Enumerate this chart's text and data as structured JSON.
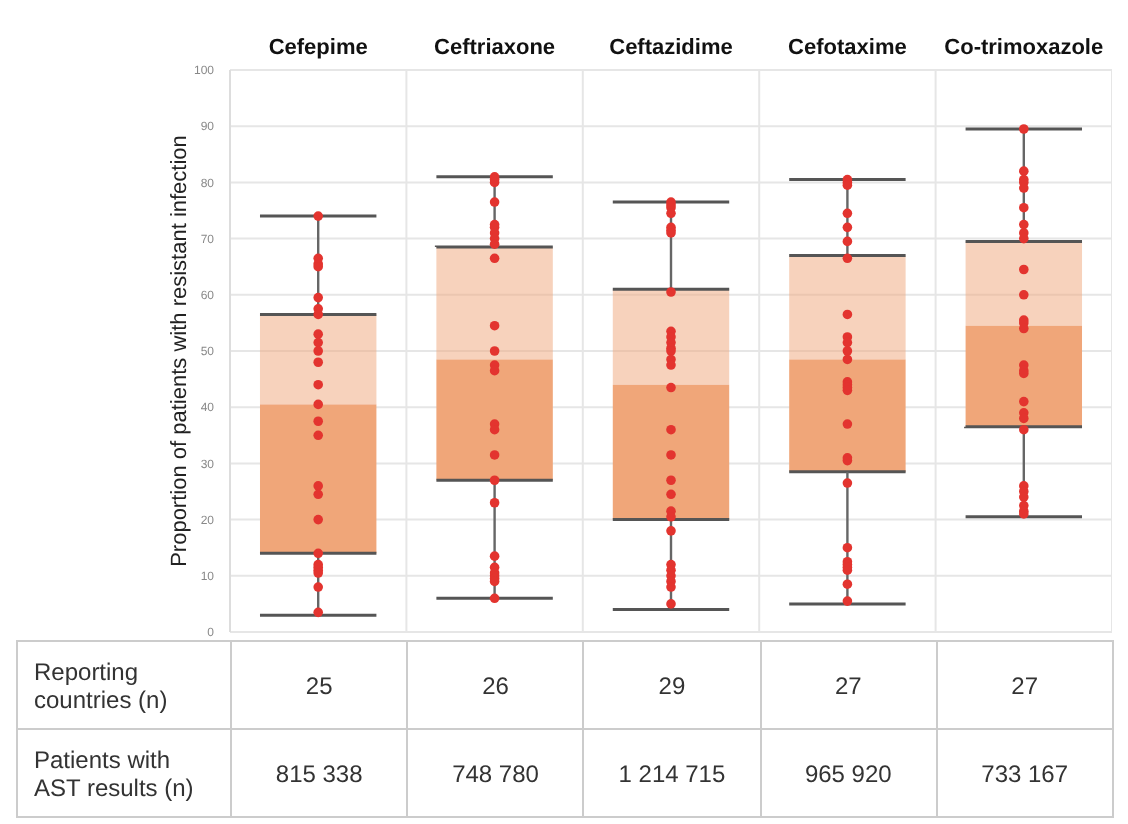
{
  "chart_data": {
    "type": "box",
    "ylabel": "Proportion of patients with resistant infection",
    "categories": [
      "Cefepime",
      "Ceftriaxone",
      "Ceftazidime",
      "Cefotaxime",
      "Co-trimoxazole"
    ],
    "ylim": [
      0,
      100
    ],
    "yticks": [
      0,
      10,
      20,
      30,
      40,
      50,
      60,
      70,
      80,
      90,
      100
    ],
    "grid": true,
    "marker": "circle",
    "series": [
      {
        "color": "#f0a679",
        "boxes": [
          {
            "low": 3,
            "q1": 14,
            "median": 40.5,
            "q3": 56.5,
            "high": 74
          },
          {
            "low": 6,
            "q1": 27,
            "median": 48.5,
            "q3": 68.5,
            "high": 81
          },
          {
            "low": 4,
            "q1": 20,
            "median": 44,
            "q3": 61,
            "high": 76.5
          },
          {
            "low": 5,
            "q1": 28.5,
            "median": 48.5,
            "q3": 67,
            "high": 80.5
          },
          {
            "low": 20.5,
            "q1": 36.5,
            "median": 54.5,
            "q3": 69.5,
            "high": 89.5
          }
        ]
      },
      {
        "type": "scatter",
        "color": "#e3342f",
        "x": [
          "Cefepime",
          "Cefepime",
          "Cefepime",
          "Cefepime",
          "Cefepime",
          "Cefepime",
          "Cefepime",
          "Cefepime",
          "Cefepime",
          "Cefepime",
          "Cefepime",
          "Cefepime",
          "Cefepime",
          "Cefepime",
          "Cefepime",
          "Cefepime",
          "Cefepime",
          "Cefepime",
          "Cefepime",
          "Cefepime",
          "Cefepime",
          "Cefepime",
          "Cefepime",
          "Cefepime",
          "Cefepime",
          "Ceftriaxone",
          "Ceftriaxone",
          "Ceftriaxone",
          "Ceftriaxone",
          "Ceftriaxone",
          "Ceftriaxone",
          "Ceftriaxone",
          "Ceftriaxone",
          "Ceftriaxone",
          "Ceftriaxone",
          "Ceftriaxone",
          "Ceftriaxone",
          "Ceftriaxone",
          "Ceftriaxone",
          "Ceftriaxone",
          "Ceftriaxone",
          "Ceftriaxone",
          "Ceftriaxone",
          "Ceftriaxone",
          "Ceftriaxone",
          "Ceftriaxone",
          "Ceftriaxone",
          "Ceftriaxone",
          "Ceftriaxone",
          "Ceftriaxone",
          "Ceftriaxone",
          "Ceftazidime",
          "Ceftazidime",
          "Ceftazidime",
          "Ceftazidime",
          "Ceftazidime",
          "Ceftazidime",
          "Ceftazidime",
          "Ceftazidime",
          "Ceftazidime",
          "Ceftazidime",
          "Ceftazidime",
          "Ceftazidime",
          "Ceftazidime",
          "Ceftazidime",
          "Ceftazidime",
          "Ceftazidime",
          "Ceftazidime",
          "Ceftazidime",
          "Ceftazidime",
          "Ceftazidime",
          "Ceftazidime",
          "Ceftazidime",
          "Ceftazidime",
          "Ceftazidime",
          "Ceftazidime",
          "Ceftazidime",
          "Ceftazidime",
          "Ceftazidime",
          "Ceftazidime",
          "Cefotaxime",
          "Cefotaxime",
          "Cefotaxime",
          "Cefotaxime",
          "Cefotaxime",
          "Cefotaxime",
          "Cefotaxime",
          "Cefotaxime",
          "Cefotaxime",
          "Cefotaxime",
          "Cefotaxime",
          "Cefotaxime",
          "Cefotaxime",
          "Cefotaxime",
          "Cefotaxime",
          "Cefotaxime",
          "Cefotaxime",
          "Cefotaxime",
          "Cefotaxime",
          "Cefotaxime",
          "Cefotaxime",
          "Cefotaxime",
          "Cefotaxime",
          "Cefotaxime",
          "Cefotaxime",
          "Cefotaxime",
          "Cefotaxime",
          "Co-trimoxazole",
          "Co-trimoxazole",
          "Co-trimoxazole",
          "Co-trimoxazole",
          "Co-trimoxazole",
          "Co-trimoxazole",
          "Co-trimoxazole",
          "Co-trimoxazole",
          "Co-trimoxazole",
          "Co-trimoxazole",
          "Co-trimoxazole",
          "Co-trimoxazole",
          "Co-trimoxazole",
          "Co-trimoxazole",
          "Co-trimoxazole",
          "Co-trimoxazole",
          "Co-trimoxazole",
          "Co-trimoxazole",
          "Co-trimoxazole",
          "Co-trimoxazole",
          "Co-trimoxazole",
          "Co-trimoxazole",
          "Co-trimoxazole",
          "Co-trimoxazole",
          "Co-trimoxazole",
          "Co-trimoxazole",
          "Co-trimoxazole"
        ],
        "values": [
          74,
          66.5,
          65.5,
          65,
          59.5,
          57.5,
          56.5,
          53,
          51.5,
          50,
          48,
          44,
          40.5,
          37.5,
          35,
          26,
          24.5,
          20,
          14,
          12,
          11.5,
          11,
          10.5,
          8,
          3.5,
          81,
          80.5,
          80,
          76.5,
          72.5,
          72,
          71,
          70,
          69,
          66.5,
          54.5,
          50,
          47.5,
          46.5,
          37,
          36,
          31.5,
          27,
          23,
          13.5,
          11.5,
          10.5,
          10,
          9.5,
          9,
          6,
          76.5,
          76,
          75.5,
          74.5,
          72,
          71.5,
          71,
          60.5,
          53.5,
          52.5,
          51.5,
          50.5,
          50,
          48.5,
          47.5,
          43.5,
          36,
          31.5,
          27,
          24.5,
          21.5,
          20.5,
          18,
          12,
          11,
          10,
          9,
          8,
          5,
          80.5,
          80,
          79.5,
          74.5,
          72,
          69.5,
          66.5,
          56.5,
          52.5,
          51.5,
          50,
          48.5,
          44.5,
          44,
          43.5,
          43,
          37,
          31,
          30.5,
          26.5,
          15,
          12.5,
          12,
          11.5,
          11,
          8.5,
          5.5,
          89.5,
          82,
          80.5,
          80,
          79,
          75.5,
          72.5,
          71,
          70,
          64.5,
          60,
          55.5,
          55,
          54,
          47.5,
          46.5,
          46,
          41,
          39,
          38,
          36,
          26,
          25,
          24,
          22.5,
          21.5,
          21
        ]
      }
    ],
    "annotations": [
      "Reporting countries (n)",
      "25",
      "26",
      "29",
      "27",
      "27",
      "Patients with AST results (n)",
      "815 338",
      "748 780",
      "1 214 715",
      "965 920",
      "733 167"
    ]
  }
}
